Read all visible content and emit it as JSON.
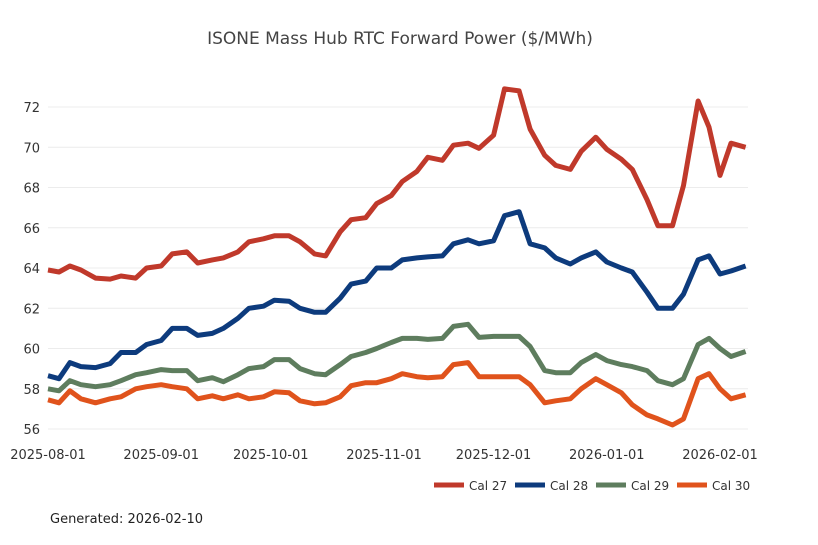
{
  "chart_data": {
    "type": "line",
    "title": "ISONE Mass Hub RTC Forward Power ($/MWh)",
    "xlabel": "",
    "ylabel": "",
    "ylim": [
      55.4,
      73.9
    ],
    "xlim": [
      "2025-08-01",
      "2026-02-08"
    ],
    "yticks": [
      56,
      58,
      60,
      62,
      64,
      66,
      68,
      70,
      72
    ],
    "xticks": [
      "2025-08-01",
      "2025-09-01",
      "2025-10-01",
      "2025-11-01",
      "2025-12-01",
      "2026-01-01",
      "2026-02-01"
    ],
    "grid": true,
    "legend_position": "bottom-right",
    "x": [
      "2025-08-01",
      "2025-08-04",
      "2025-08-07",
      "2025-08-10",
      "2025-08-14",
      "2025-08-18",
      "2025-08-21",
      "2025-08-25",
      "2025-08-28",
      "2025-09-01",
      "2025-09-04",
      "2025-09-08",
      "2025-09-11",
      "2025-09-15",
      "2025-09-18",
      "2025-09-22",
      "2025-09-25",
      "2025-09-29",
      "2025-10-02",
      "2025-10-06",
      "2025-10-09",
      "2025-10-13",
      "2025-10-16",
      "2025-10-20",
      "2025-10-23",
      "2025-10-27",
      "2025-10-30",
      "2025-11-03",
      "2025-11-06",
      "2025-11-10",
      "2025-11-13",
      "2025-11-17",
      "2025-11-20",
      "2025-11-24",
      "2025-11-27",
      "2025-12-01",
      "2025-12-04",
      "2025-12-08",
      "2025-12-11",
      "2025-12-15",
      "2025-12-18",
      "2025-12-22",
      "2025-12-25",
      "2025-12-29",
      "2026-01-01",
      "2026-01-05",
      "2026-01-08",
      "2026-01-12",
      "2026-01-15",
      "2026-01-19",
      "2026-01-22",
      "2026-01-26",
      "2026-01-29",
      "2026-02-01",
      "2026-02-04",
      "2026-02-08"
    ],
    "series": [
      {
        "name": "Cal 27",
        "color": "#c0392b",
        "values": [
          63.9,
          63.8,
          64.1,
          63.9,
          63.5,
          63.45,
          63.6,
          63.5,
          64.0,
          64.1,
          64.7,
          64.8,
          64.25,
          64.4,
          64.5,
          64.8,
          65.3,
          65.45,
          65.6,
          65.6,
          65.3,
          64.7,
          64.6,
          65.8,
          66.4,
          66.5,
          67.2,
          67.6,
          68.3,
          68.8,
          69.5,
          69.35,
          70.1,
          70.2,
          69.95,
          70.6,
          72.9,
          72.8,
          70.9,
          69.6,
          69.1,
          68.9,
          69.8,
          70.5,
          69.9,
          69.4,
          68.9,
          67.4,
          66.1,
          66.1,
          68.1,
          72.3,
          71.0,
          68.6,
          70.2,
          70.0
        ]
      },
      {
        "name": "Cal 28",
        "color": "#0d3b7d",
        "values": [
          58.65,
          58.5,
          59.3,
          59.1,
          59.05,
          59.25,
          59.8,
          59.8,
          60.2,
          60.4,
          61.0,
          61.0,
          60.65,
          60.75,
          61.0,
          61.5,
          62.0,
          62.1,
          62.4,
          62.35,
          62.0,
          61.8,
          61.8,
          62.5,
          63.2,
          63.35,
          64.0,
          64.0,
          64.4,
          64.5,
          64.55,
          64.6,
          65.2,
          65.4,
          65.2,
          65.35,
          66.6,
          66.8,
          65.2,
          65.0,
          64.5,
          64.2,
          64.5,
          64.8,
          64.3,
          64.0,
          63.8,
          62.8,
          62.0,
          62.0,
          62.7,
          64.4,
          64.6,
          63.7,
          63.85,
          64.1
        ]
      },
      {
        "name": "Cal 29",
        "color": "#5e7d5e",
        "values": [
          58.0,
          57.9,
          58.4,
          58.2,
          58.1,
          58.2,
          58.4,
          58.7,
          58.8,
          58.95,
          58.9,
          58.9,
          58.4,
          58.55,
          58.35,
          58.7,
          59.0,
          59.1,
          59.45,
          59.45,
          59.0,
          58.75,
          58.7,
          59.2,
          59.6,
          59.8,
          60.0,
          60.3,
          60.5,
          60.5,
          60.45,
          60.5,
          61.1,
          61.2,
          60.55,
          60.6,
          60.6,
          60.6,
          60.1,
          58.9,
          58.8,
          58.8,
          59.3,
          59.7,
          59.4,
          59.2,
          59.1,
          58.9,
          58.4,
          58.2,
          58.5,
          60.2,
          60.5,
          60.0,
          59.6,
          59.85
        ]
      },
      {
        "name": "Cal 30",
        "color": "#e0531c",
        "values": [
          57.45,
          57.3,
          57.9,
          57.5,
          57.3,
          57.5,
          57.6,
          58.0,
          58.1,
          58.2,
          58.1,
          58.0,
          57.5,
          57.65,
          57.5,
          57.7,
          57.5,
          57.6,
          57.85,
          57.8,
          57.4,
          57.25,
          57.3,
          57.6,
          58.15,
          58.3,
          58.3,
          58.5,
          58.75,
          58.6,
          58.55,
          58.6,
          59.2,
          59.3,
          58.6,
          58.6,
          58.6,
          58.6,
          58.2,
          57.3,
          57.4,
          57.5,
          58.0,
          58.5,
          58.2,
          57.8,
          57.2,
          56.7,
          56.5,
          56.2,
          56.5,
          58.5,
          58.75,
          58.0,
          57.5,
          57.7
        ]
      }
    ]
  },
  "footer": {
    "generated": "Generated: 2026-02-10"
  }
}
